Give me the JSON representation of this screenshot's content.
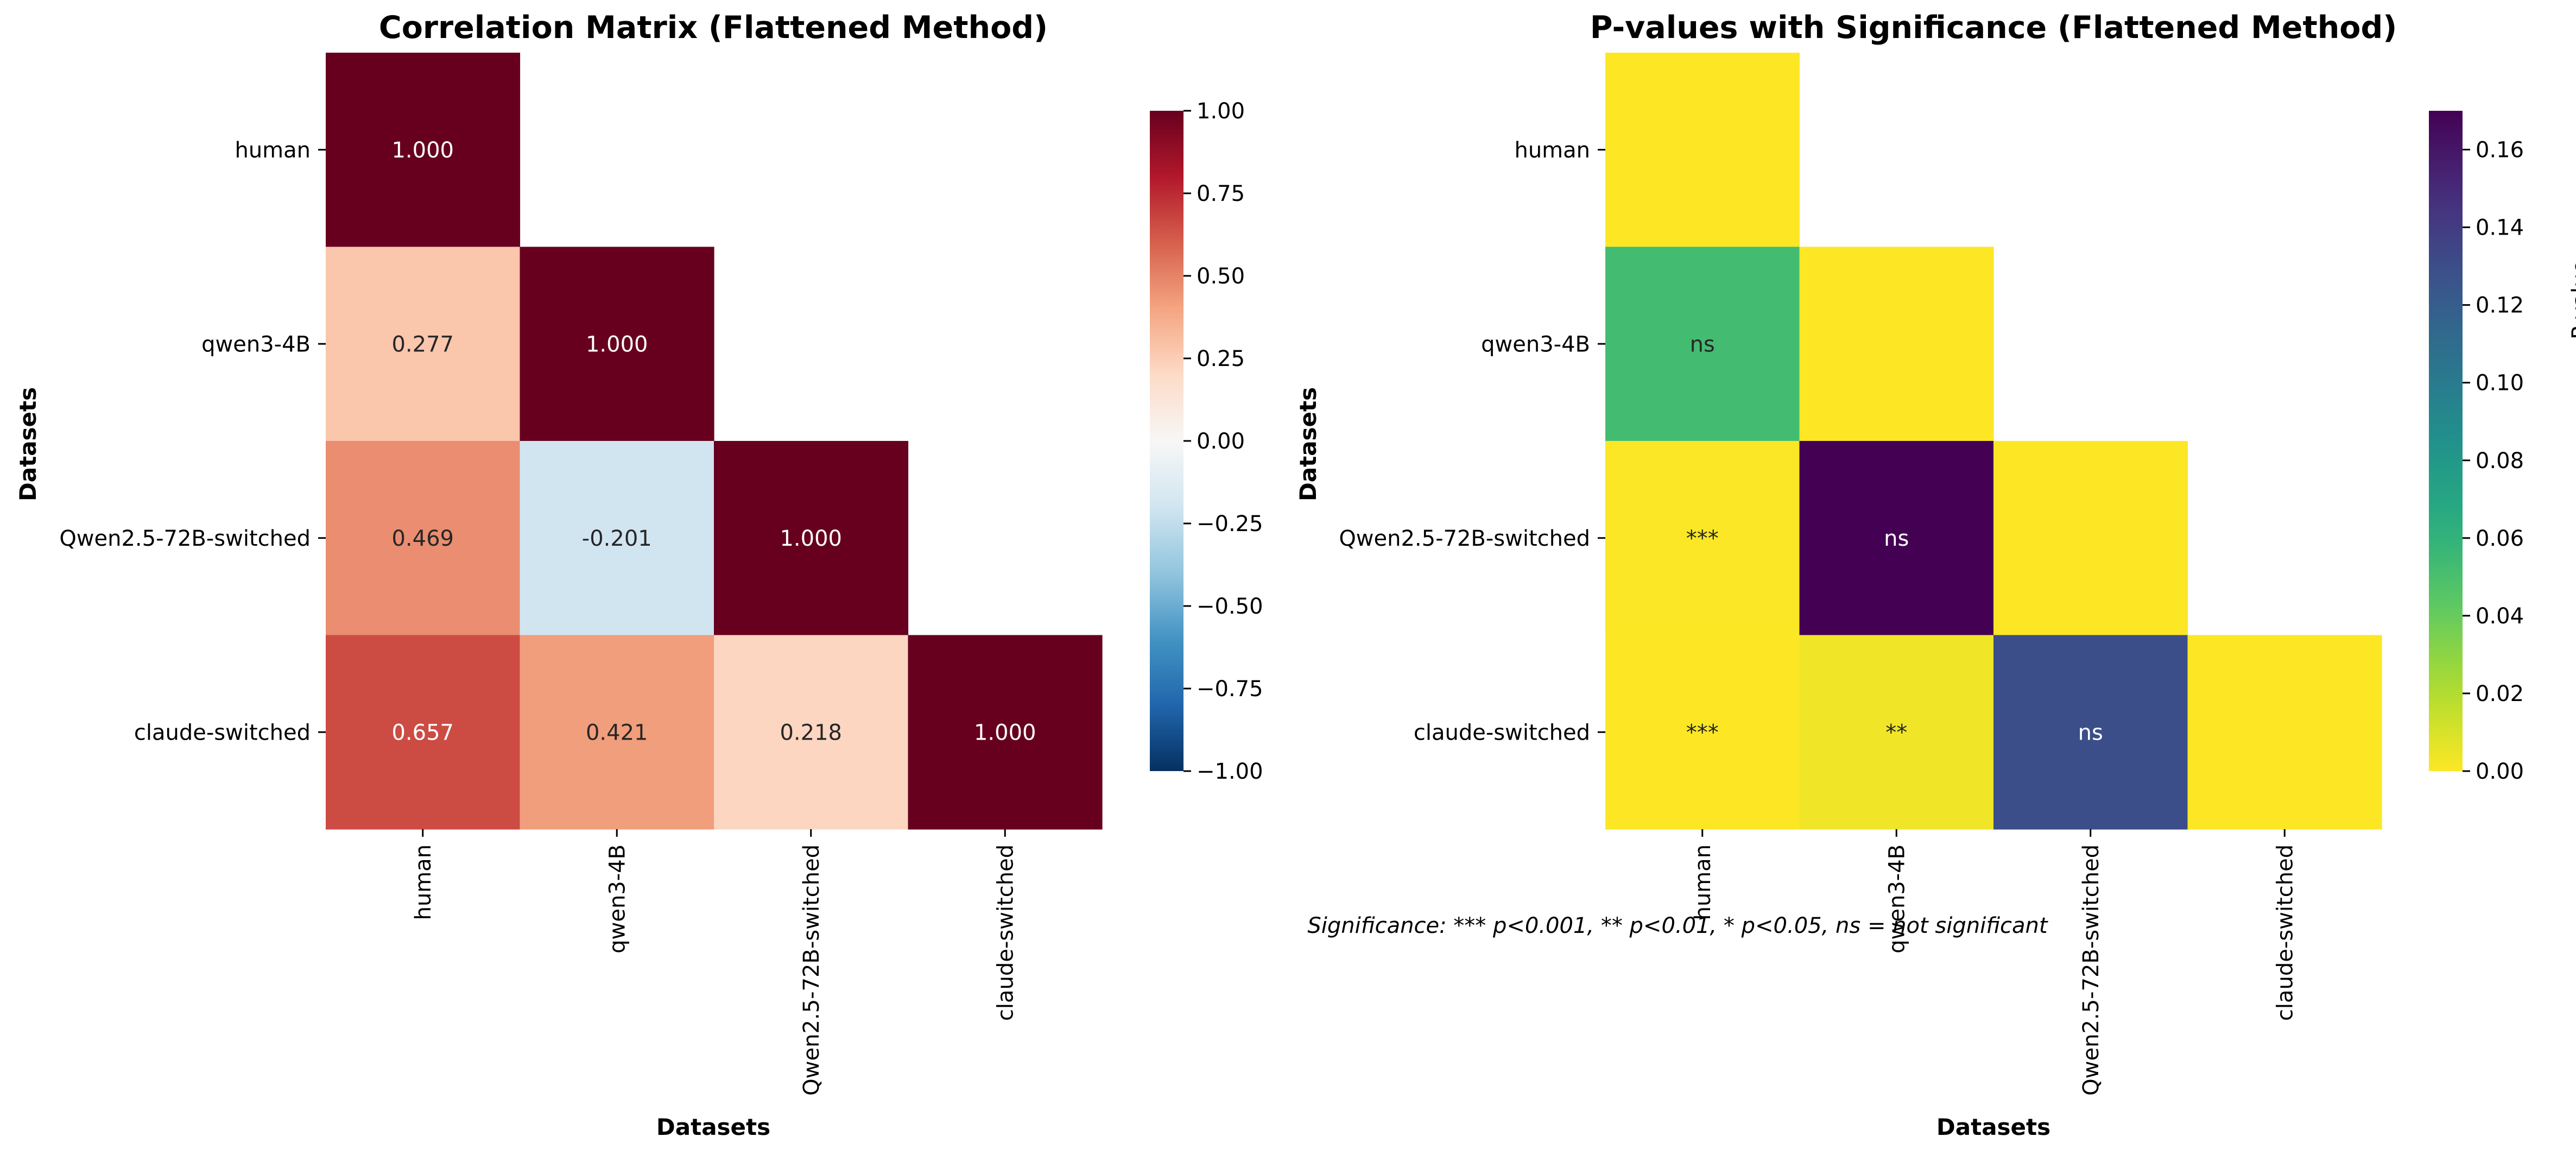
{
  "footnote": "Significance: *** p<0.001, ** p<0.01, * p<0.05, ns = not significant",
  "chart_data": [
    {
      "type": "heatmap",
      "title": "Correlation Matrix (Flattened Method)",
      "xlabel": "Datasets",
      "ylabel": "Datasets",
      "categories": [
        "human",
        "qwen3-4B",
        "Qwen2.5-72B-switched",
        "claude-switched"
      ],
      "mask": "upper-triangle",
      "cells": [
        {
          "row": 0,
          "col": 0,
          "value": 1.0,
          "label": "1.000"
        },
        {
          "row": 1,
          "col": 0,
          "value": 0.277,
          "label": "0.277"
        },
        {
          "row": 1,
          "col": 1,
          "value": 1.0,
          "label": "1.000"
        },
        {
          "row": 2,
          "col": 0,
          "value": 0.469,
          "label": "0.469"
        },
        {
          "row": 2,
          "col": 1,
          "value": -0.201,
          "label": "-0.201"
        },
        {
          "row": 2,
          "col": 2,
          "value": 1.0,
          "label": "1.000"
        },
        {
          "row": 3,
          "col": 0,
          "value": 0.657,
          "label": "0.657"
        },
        {
          "row": 3,
          "col": 1,
          "value": 0.421,
          "label": "0.421"
        },
        {
          "row": 3,
          "col": 2,
          "value": 0.218,
          "label": "0.218"
        },
        {
          "row": 3,
          "col": 3,
          "value": 1.0,
          "label": "1.000"
        }
      ],
      "colorbar": {
        "colormap": "RdBu_r",
        "range": [
          -1.0,
          1.0
        ],
        "label": "",
        "ticks": [
          1.0,
          0.75,
          0.5,
          0.25,
          0.0,
          -0.25,
          -0.5,
          -0.75,
          -1.0
        ],
        "tick_labels": [
          "1.00",
          "0.75",
          "0.50",
          "0.25",
          "0.00",
          "−0.25",
          "−0.50",
          "−0.75",
          "−1.00"
        ]
      }
    },
    {
      "type": "heatmap",
      "title": "P-values with Significance (Flattened Method)",
      "xlabel": "Datasets",
      "ylabel": "Datasets",
      "categories": [
        "human",
        "qwen3-4B",
        "Qwen2.5-72B-switched",
        "claude-switched"
      ],
      "mask": "upper-triangle",
      "cells": [
        {
          "row": 0,
          "col": 0,
          "value": 0.0,
          "label": ""
        },
        {
          "row": 1,
          "col": 0,
          "value": 0.053,
          "label": "ns"
        },
        {
          "row": 1,
          "col": 1,
          "value": 0.0,
          "label": ""
        },
        {
          "row": 2,
          "col": 0,
          "value": 0.0005,
          "label": "***"
        },
        {
          "row": 2,
          "col": 1,
          "value": 0.17,
          "label": "ns"
        },
        {
          "row": 2,
          "col": 2,
          "value": 0.0,
          "label": ""
        },
        {
          "row": 3,
          "col": 0,
          "value": 0.0,
          "label": "***"
        },
        {
          "row": 3,
          "col": 1,
          "value": 0.0035,
          "label": "**"
        },
        {
          "row": 3,
          "col": 2,
          "value": 0.13,
          "label": "ns"
        },
        {
          "row": 3,
          "col": 3,
          "value": 0.0,
          "label": ""
        }
      ],
      "colorbar": {
        "colormap": "viridis_r",
        "range": [
          0.0,
          0.17
        ],
        "label": "P-value",
        "ticks": [
          0.16,
          0.14,
          0.12,
          0.1,
          0.08,
          0.06,
          0.04,
          0.02,
          0.0
        ],
        "tick_labels": [
          "0.16",
          "0.14",
          "0.12",
          "0.10",
          "0.08",
          "0.06",
          "0.04",
          "0.02",
          "0.00"
        ]
      }
    }
  ]
}
